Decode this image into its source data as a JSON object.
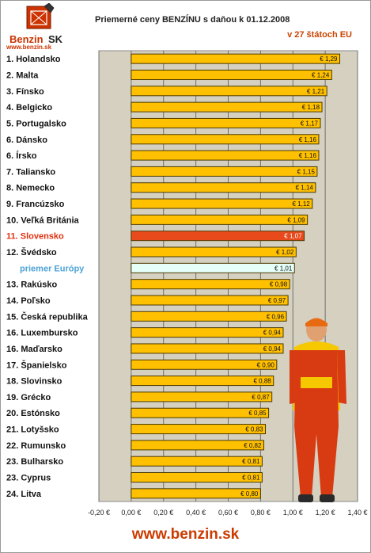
{
  "logo": {
    "brand_left": "Benzin",
    "brand_right": "SK",
    "site": "www.benzin.sk"
  },
  "footer": {
    "site": "www.benzin.sk"
  },
  "colors": {
    "bar": "#ffc000",
    "bar_border": "#4a3a00",
    "highlight_bar": "#e84a1c",
    "average_bar": "#e6fff8",
    "plot_bg": "#d5d0c0",
    "highlight_label": "#e03010",
    "average_label": "#4da3d6",
    "brand": "#cc3300"
  },
  "chart_data": {
    "type": "bar",
    "orientation": "horizontal",
    "title": "Priemerné ceny BENZÍNU s daňou k 01.12.2008",
    "subtitle": "v 27 štátoch EU",
    "xlim": [
      -0.2,
      1.4
    ],
    "xticks": [
      "-0,20 €",
      "0,00 €",
      "0,20 €",
      "0,40 €",
      "0,60 €",
      "0,80 €",
      "1,00 €",
      "1,20 €",
      "1,40 €"
    ],
    "grid": true,
    "highlight": "11. Slovensko",
    "average": "priemer Európy",
    "categories": [
      "1. Holandsko",
      "2. Malta",
      "3. Fínsko",
      "4. Belgicko",
      "5. Portugalsko",
      "6. Dánsko",
      "6. Írsko",
      "7. Taliansko",
      "8. Nemecko",
      "9. Francúzsko",
      "10. Veľká Británia",
      "11. Slovensko",
      "12. Švédsko",
      "priemer Európy",
      "13. Rakúsko",
      "14. Poľsko",
      "15. Česká republika",
      "16. Luxembursko",
      "16. Maďarsko",
      "17. Španielsko",
      "18. Slovinsko",
      "19. Grécko",
      "20. Estónsko",
      "21. Lotyšsko",
      "22. Rumunsko",
      "23. Bulharsko",
      "23. Cyprus",
      "24. Litva"
    ],
    "values": [
      1.29,
      1.24,
      1.21,
      1.18,
      1.17,
      1.16,
      1.16,
      1.15,
      1.14,
      1.12,
      1.09,
      1.07,
      1.02,
      1.01,
      0.98,
      0.97,
      0.96,
      0.94,
      0.94,
      0.9,
      0.88,
      0.87,
      0.85,
      0.83,
      0.82,
      0.81,
      0.81,
      0.8
    ],
    "value_labels": [
      "€ 1,29",
      "€ 1,24",
      "€ 1,21",
      "€ 1,18",
      "€ 1,17",
      "€ 1,16",
      "€ 1,16",
      "€ 1,15",
      "€ 1,14",
      "€ 1,12",
      "€ 1,09",
      "€ 1,07",
      "€ 1,02",
      "€ 1,01",
      "€ 0,98",
      "€ 0,97",
      "€ 0,96",
      "€ 0,94",
      "€ 0,94",
      "€ 0,90",
      "€ 0,88",
      "€ 0,87",
      "€ 0,85",
      "€ 0,83",
      "€ 0,82",
      "€ 0,81",
      "€ 0,81",
      "€ 0,80"
    ]
  }
}
